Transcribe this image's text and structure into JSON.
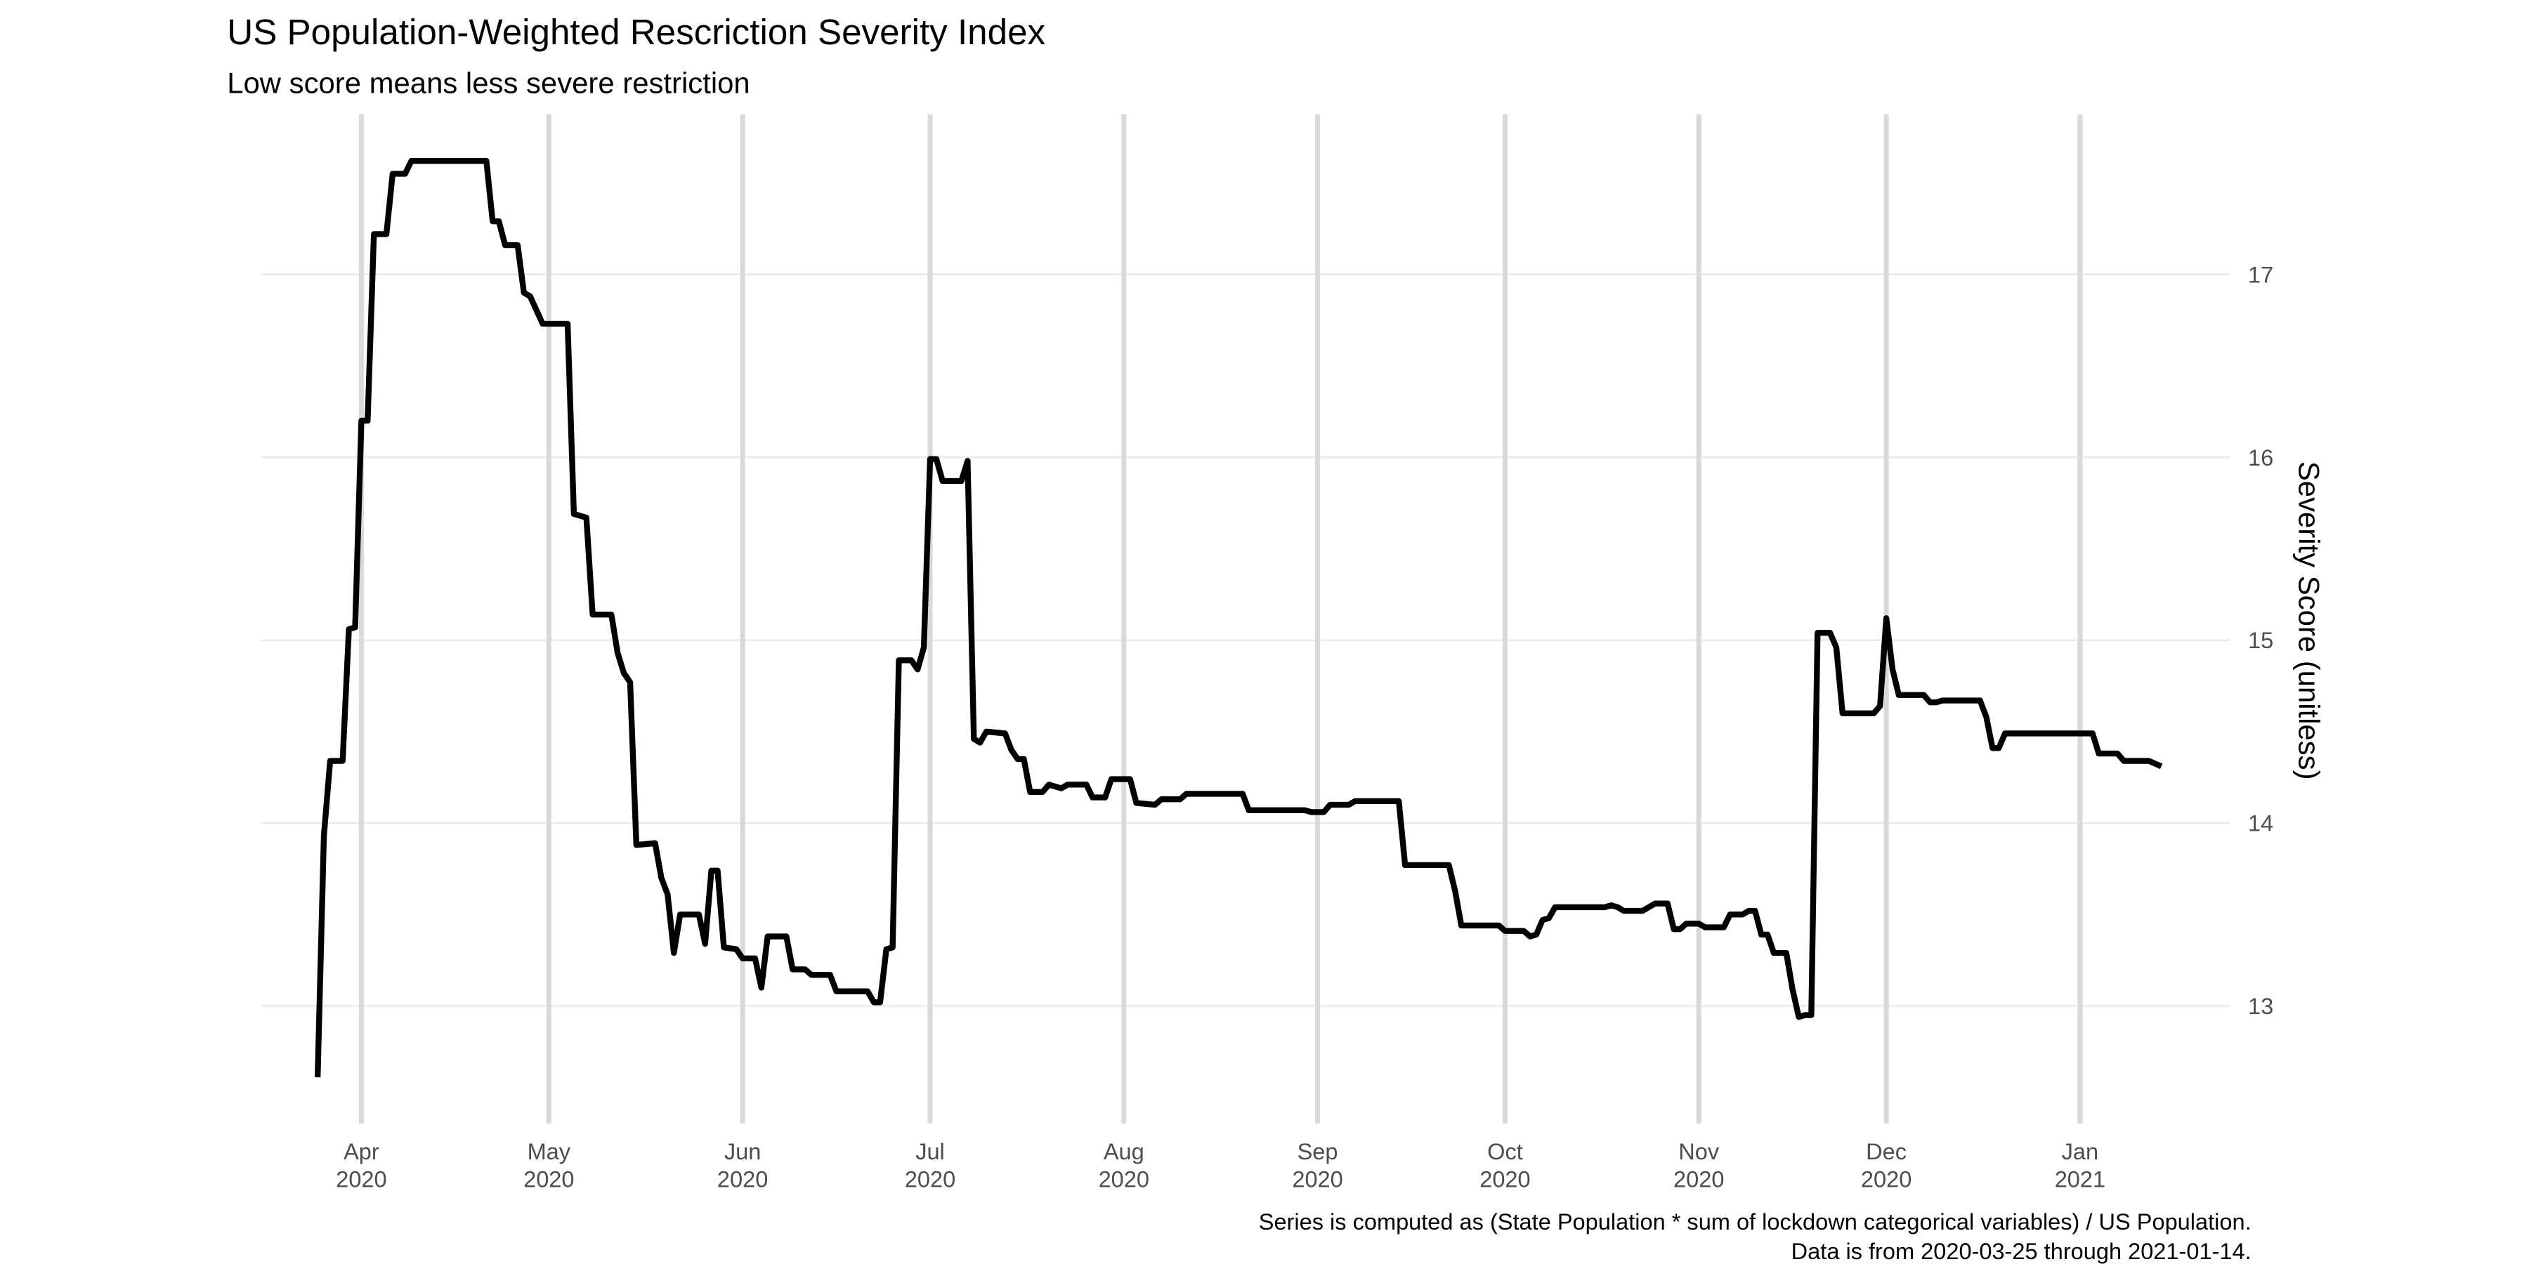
{
  "chart_data": {
    "type": "line",
    "title": "US Population-Weighted Rescriction Severity Index",
    "subtitle": "Low score means less severe restriction",
    "y_label": "Severity Score (unitless)",
    "caption": [
      "Series is computed as (State Population * sum of lockdown categorical variables) / US Population.",
      "Data is from 2020-03-25 through 2021-01-14."
    ],
    "x": [
      "2020-03-25",
      "2020-03-26",
      "2020-03-27",
      "2020-03-29",
      "2020-03-30",
      "2020-03-31",
      "2020-04-01",
      "2020-04-02",
      "2020-04-03",
      "2020-04-05",
      "2020-04-06",
      "2020-04-08",
      "2020-04-09",
      "2020-04-21",
      "2020-04-22",
      "2020-04-23",
      "2020-04-24",
      "2020-04-26",
      "2020-04-27",
      "2020-04-28",
      "2020-04-30",
      "2020-05-04",
      "2020-05-05",
      "2020-05-07",
      "2020-05-08",
      "2020-05-11",
      "2020-05-12",
      "2020-05-13",
      "2020-05-14",
      "2020-05-15",
      "2020-05-18",
      "2020-05-19",
      "2020-05-20",
      "2020-05-21",
      "2020-05-22",
      "2020-05-25",
      "2020-05-26",
      "2020-05-27",
      "2020-05-28",
      "2020-05-29",
      "2020-05-31",
      "2020-06-01",
      "2020-06-03",
      "2020-06-04",
      "2020-06-05",
      "2020-06-08",
      "2020-06-09",
      "2020-06-11",
      "2020-06-12",
      "2020-06-15",
      "2020-06-16",
      "2020-06-21",
      "2020-06-22",
      "2020-06-23",
      "2020-06-24",
      "2020-06-25",
      "2020-06-26",
      "2020-06-28",
      "2020-06-29",
      "2020-06-30",
      "2020-07-01",
      "2020-07-02",
      "2020-07-03",
      "2020-07-06",
      "2020-07-07",
      "2020-07-08",
      "2020-07-09",
      "2020-07-10",
      "2020-07-13",
      "2020-07-14",
      "2020-07-15",
      "2020-07-16",
      "2020-07-17",
      "2020-07-19",
      "2020-07-20",
      "2020-07-22",
      "2020-07-23",
      "2020-07-26",
      "2020-07-27",
      "2020-07-29",
      "2020-07-30",
      "2020-08-02",
      "2020-08-03",
      "2020-08-06",
      "2020-08-07",
      "2020-08-10",
      "2020-08-11",
      "2020-08-20",
      "2020-08-21",
      "2020-08-30",
      "2020-08-31",
      "2020-09-02",
      "2020-09-03",
      "2020-09-06",
      "2020-09-07",
      "2020-09-14",
      "2020-09-15",
      "2020-09-22",
      "2020-09-23",
      "2020-09-24",
      "2020-09-30",
      "2020-10-01",
      "2020-10-04",
      "2020-10-05",
      "2020-10-06",
      "2020-10-07",
      "2020-10-08",
      "2020-10-09",
      "2020-10-17",
      "2020-10-18",
      "2020-10-19",
      "2020-10-20",
      "2020-10-23",
      "2020-10-24",
      "2020-10-25",
      "2020-10-27",
      "2020-10-28",
      "2020-10-29",
      "2020-10-30",
      "2020-11-01",
      "2020-11-02",
      "2020-11-05",
      "2020-11-06",
      "2020-11-08",
      "2020-11-09",
      "2020-11-10",
      "2020-11-11",
      "2020-11-12",
      "2020-11-13",
      "2020-11-15",
      "2020-11-16",
      "2020-11-17",
      "2020-11-18",
      "2020-11-19",
      "2020-11-20",
      "2020-11-22",
      "2020-11-23",
      "2020-11-24",
      "2020-11-29",
      "2020-11-30",
      "2020-12-01",
      "2020-12-02",
      "2020-12-03",
      "2020-12-07",
      "2020-12-08",
      "2020-12-09",
      "2020-12-10",
      "2020-12-16",
      "2020-12-17",
      "2020-12-18",
      "2020-12-19",
      "2020-12-20",
      "2021-01-03",
      "2021-01-04",
      "2021-01-07",
      "2021-01-08",
      "2021-01-12",
      "2021-01-14"
    ],
    "series": [
      {
        "name": "Severity Score",
        "color": "#000000",
        "values": [
          12.61,
          13.93,
          14.34,
          14.34,
          15.06,
          15.07,
          16.2,
          16.2,
          17.22,
          17.22,
          17.55,
          17.55,
          17.62,
          17.62,
          17.29,
          17.29,
          17.16,
          17.16,
          16.9,
          16.88,
          16.73,
          16.73,
          15.69,
          15.67,
          15.14,
          15.14,
          14.93,
          14.82,
          14.77,
          13.88,
          13.89,
          13.7,
          13.61,
          13.29,
          13.5,
          13.5,
          13.34,
          13.74,
          13.74,
          13.32,
          13.31,
          13.26,
          13.26,
          13.1,
          13.38,
          13.38,
          13.2,
          13.2,
          13.17,
          13.17,
          13.08,
          13.08,
          13.02,
          13.02,
          13.31,
          13.32,
          14.89,
          14.89,
          14.84,
          14.96,
          15.99,
          15.99,
          15.87,
          15.87,
          15.98,
          14.46,
          14.44,
          14.5,
          14.49,
          14.4,
          14.35,
          14.35,
          14.17,
          14.17,
          14.21,
          14.19,
          14.21,
          14.21,
          14.14,
          14.14,
          14.24,
          14.24,
          14.11,
          14.1,
          14.13,
          14.13,
          14.16,
          14.16,
          14.07,
          14.07,
          14.06,
          14.06,
          14.1,
          14.1,
          14.12,
          14.12,
          13.77,
          13.77,
          13.63,
          13.44,
          13.44,
          13.41,
          13.41,
          13.38,
          13.39,
          13.47,
          13.48,
          13.54,
          13.54,
          13.55,
          13.54,
          13.52,
          13.52,
          13.54,
          13.56,
          13.56,
          13.42,
          13.42,
          13.45,
          13.45,
          13.43,
          13.43,
          13.5,
          13.5,
          13.52,
          13.52,
          13.39,
          13.39,
          13.29,
          13.29,
          13.09,
          12.94,
          12.95,
          12.95,
          15.04,
          15.04,
          14.96,
          14.6,
          14.6,
          14.64,
          15.12,
          14.84,
          14.7,
          14.7,
          14.66,
          14.66,
          14.67,
          14.67,
          14.58,
          14.41,
          14.41,
          14.49,
          14.49,
          14.38,
          14.38,
          14.34,
          14.34,
          14.31
        ]
      }
    ],
    "xlim": [
      "2020-03-16",
      "2021-01-25"
    ],
    "xticks": [
      {
        "value": "2020-04-01",
        "label": "Apr\n2020"
      },
      {
        "value": "2020-05-01",
        "label": "May\n2020"
      },
      {
        "value": "2020-06-01",
        "label": "Jun\n2020"
      },
      {
        "value": "2020-07-01",
        "label": "Jul\n2020"
      },
      {
        "value": "2020-08-01",
        "label": "Aug\n2020"
      },
      {
        "value": "2020-09-01",
        "label": "Sep\n2020"
      },
      {
        "value": "2020-10-01",
        "label": "Oct\n2020"
      },
      {
        "value": "2020-11-01",
        "label": "Nov\n2020"
      },
      {
        "value": "2020-12-01",
        "label": "Dec\n2020"
      },
      {
        "value": "2021-01-01",
        "label": "Jan\n2021"
      }
    ],
    "ylim": [
      12.357,
      17.875
    ],
    "yticks": [
      13,
      14,
      15,
      16,
      17
    ],
    "grid": true,
    "y_axis_side": "right"
  }
}
